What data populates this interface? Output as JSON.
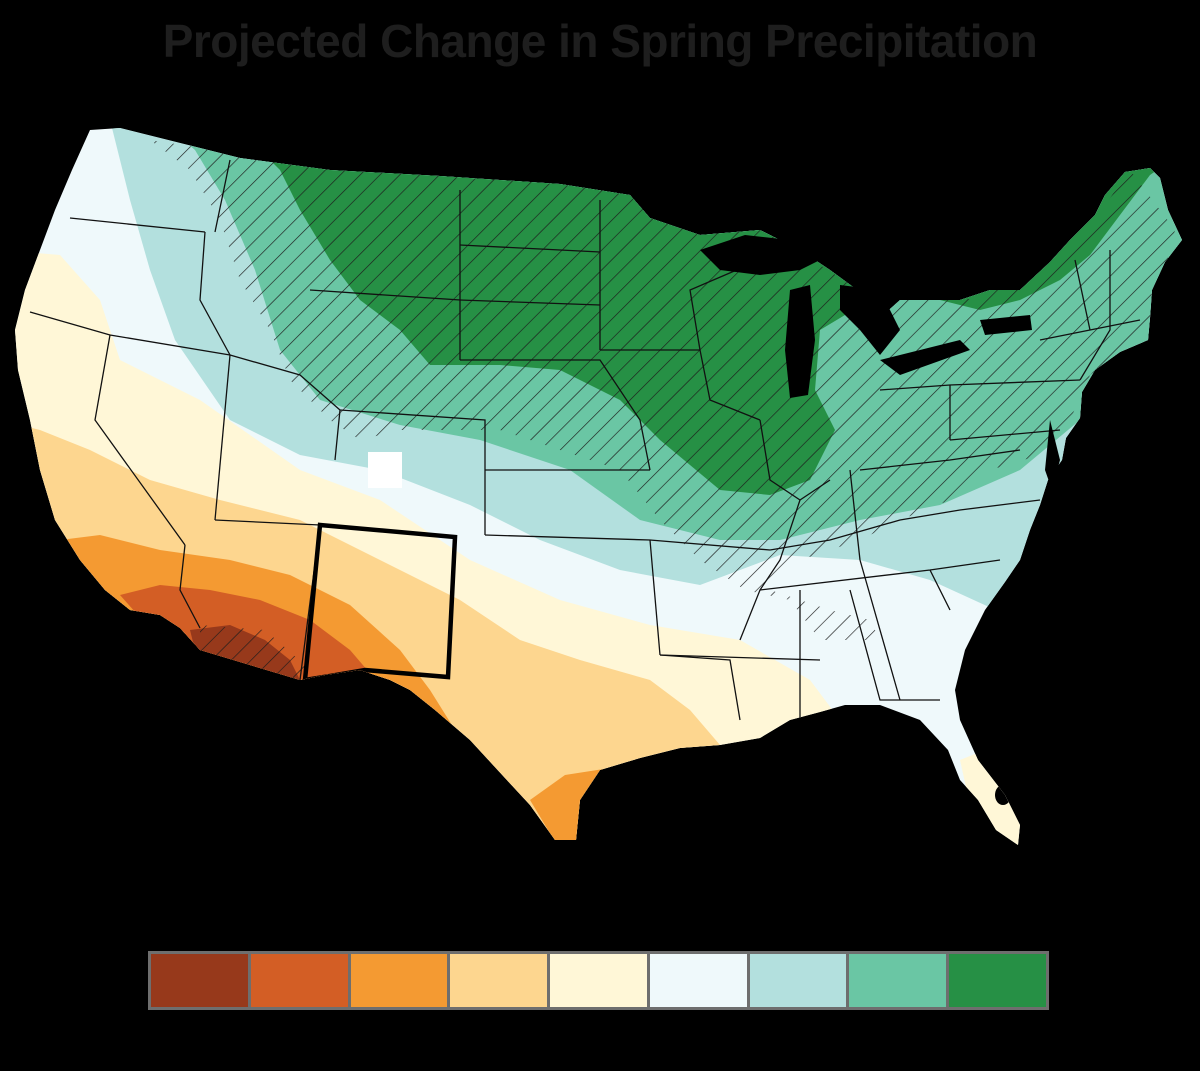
{
  "title": "Projected Change in Spring Precipitation",
  "legend": {
    "title": "",
    "colors": [
      "#97391b",
      "#d35e25",
      "#f49a32",
      "#fdd68f",
      "#fff7d7",
      "#eff9fb",
      "#b3e0de",
      "#6ac6a4",
      "#269045"
    ],
    "ticks": []
  },
  "map": {
    "highlighted_state": "New Mexico",
    "hatching_meaning_unlabeled": true,
    "zone_colors": {
      "ocean": "#000000",
      "state_lines": "#111111",
      "highlight_border": "#000000"
    }
  }
}
